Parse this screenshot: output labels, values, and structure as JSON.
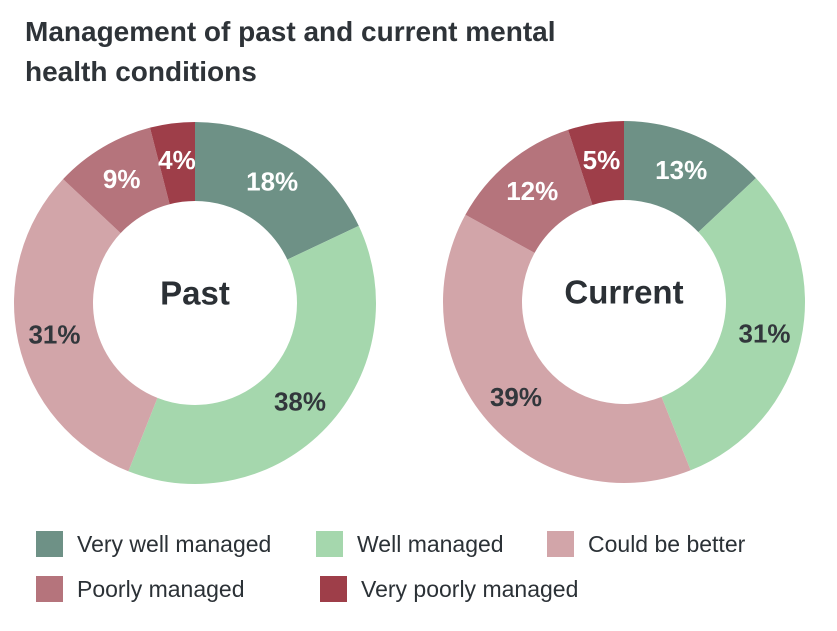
{
  "title": {
    "lines": [
      "Management of past and current mental",
      "health conditions"
    ]
  },
  "chart_data": {
    "type": "pie",
    "subtype": "donut",
    "title": "Management of past and current mental health conditions",
    "legend_position": "bottom",
    "value_suffix": "%",
    "categories": [
      "Very well managed",
      "Well managed",
      "Could be better",
      "Poorly managed",
      "Very poorly managed"
    ],
    "colors": [
      "#6E9186",
      "#A5D7AD",
      "#D2A5A9",
      "#B5747C",
      "#9E3E49"
    ],
    "label_text_colors": [
      "#FFFFFF",
      "#32373C",
      "#32373C",
      "#FFFFFF",
      "#FFFFFF"
    ],
    "series": [
      {
        "name": "Past",
        "values": [
          18,
          38,
          31,
          9,
          4
        ]
      },
      {
        "name": "Current",
        "values": [
          13,
          31,
          39,
          12,
          5
        ]
      }
    ]
  }
}
